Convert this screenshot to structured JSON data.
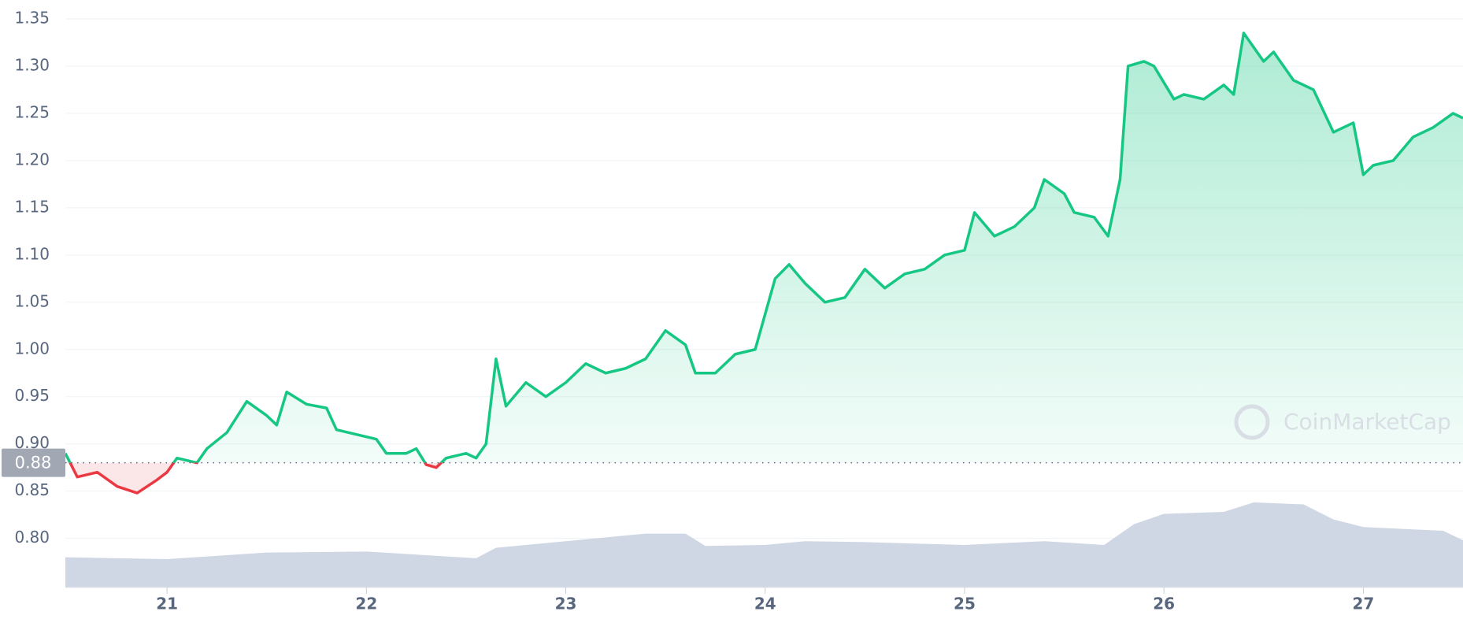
{
  "chart_data": {
    "type": "line",
    "watermark": "CoinMarketCap",
    "baseline": 0.88,
    "x": [
      20.49,
      20.55,
      20.65,
      20.75,
      20.85,
      20.95,
      21.0,
      21.05,
      21.15,
      21.2,
      21.3,
      21.4,
      21.5,
      21.55,
      21.6,
      21.7,
      21.8,
      21.85,
      21.95,
      22.05,
      22.1,
      22.2,
      22.25,
      22.3,
      22.35,
      22.4,
      22.5,
      22.55,
      22.6,
      22.65,
      22.7,
      22.8,
      22.9,
      23.0,
      23.1,
      23.2,
      23.3,
      23.4,
      23.5,
      23.6,
      23.65,
      23.75,
      23.85,
      23.95,
      24.05,
      24.12,
      24.2,
      24.3,
      24.4,
      24.5,
      24.6,
      24.7,
      24.8,
      24.9,
      25.0,
      25.05,
      25.15,
      25.25,
      25.35,
      25.4,
      25.5,
      25.55,
      25.65,
      25.72,
      25.78,
      25.82,
      25.9,
      25.95,
      26.05,
      26.1,
      26.2,
      26.3,
      26.35,
      26.4,
      26.5,
      26.55,
      26.65,
      26.75,
      26.85,
      26.95,
      27.0,
      27.05,
      27.15,
      27.25,
      27.35,
      27.45,
      27.5
    ],
    "series": [
      {
        "color": "#16c784",
        "below_color": "#ea3943",
        "values": [
          0.89,
          0.865,
          0.87,
          0.855,
          0.848,
          0.862,
          0.87,
          0.885,
          0.88,
          0.895,
          0.912,
          0.945,
          0.93,
          0.92,
          0.955,
          0.942,
          0.938,
          0.915,
          0.91,
          0.905,
          0.89,
          0.89,
          0.895,
          0.878,
          0.875,
          0.885,
          0.89,
          0.885,
          0.9,
          0.99,
          0.94,
          0.965,
          0.95,
          0.965,
          0.985,
          0.975,
          0.98,
          0.99,
          1.02,
          1.005,
          0.975,
          0.975,
          0.995,
          1.0,
          1.075,
          1.09,
          1.07,
          1.05,
          1.055,
          1.085,
          1.065,
          1.08,
          1.085,
          1.1,
          1.105,
          1.145,
          1.12,
          1.13,
          1.15,
          1.18,
          1.165,
          1.145,
          1.14,
          1.12,
          1.18,
          1.3,
          1.305,
          1.3,
          1.265,
          1.27,
          1.265,
          1.28,
          1.27,
          1.335,
          1.305,
          1.315,
          1.285,
          1.275,
          1.23,
          1.24,
          1.185,
          1.195,
          1.2,
          1.225,
          1.235,
          1.25,
          1.245
        ]
      }
    ],
    "volume": {
      "color": "#cfd6e4",
      "x": [
        20.49,
        21.0,
        21.5,
        22.0,
        22.55,
        22.65,
        23.0,
        23.4,
        23.6,
        23.7,
        24.0,
        24.2,
        24.5,
        25.0,
        25.4,
        25.7,
        25.85,
        26.0,
        26.3,
        26.45,
        26.7,
        26.85,
        27.0,
        27.4,
        27.5
      ],
      "values": [
        0.78,
        0.778,
        0.785,
        0.786,
        0.779,
        0.79,
        0.797,
        0.805,
        0.805,
        0.792,
        0.793,
        0.797,
        0.796,
        0.793,
        0.797,
        0.793,
        0.815,
        0.826,
        0.828,
        0.838,
        0.836,
        0.82,
        0.812,
        0.808,
        0.798
      ]
    },
    "xlim": [
      20.49,
      27.5
    ],
    "ylim": [
      0.748,
      1.37
    ],
    "xticks": [
      21,
      22,
      23,
      24,
      25,
      26,
      27
    ],
    "yticks": [
      {
        "value": 0.8,
        "label": "0.80"
      },
      {
        "value": 0.85,
        "label": "0.85"
      },
      {
        "value": 0.9,
        "label": "0.90"
      },
      {
        "value": 0.95,
        "label": "0.95"
      },
      {
        "value": 1.0,
        "label": "1.00"
      },
      {
        "value": 1.05,
        "label": "1.05"
      },
      {
        "value": 1.1,
        "label": "1.10"
      },
      {
        "value": 1.15,
        "label": "1.15"
      },
      {
        "value": 1.2,
        "label": "1.20"
      },
      {
        "value": 1.25,
        "label": "1.25"
      },
      {
        "value": 1.3,
        "label": "1.30"
      },
      {
        "value": 1.35,
        "label": "1.35"
      }
    ],
    "grid": true
  }
}
